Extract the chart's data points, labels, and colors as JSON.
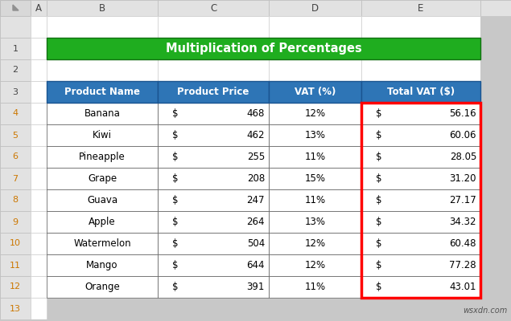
{
  "title": "Multiplication of Percentages",
  "title_bg": "#1FAD1F",
  "title_color": "#FFFFFF",
  "header_bg": "#2E75B6",
  "header_color": "#FFFFFF",
  "headers": [
    "Product Name",
    "Product Price",
    "VAT (%)",
    "Total VAT ($)"
  ],
  "rows": [
    [
      "Banana",
      "$",
      "468",
      "12%",
      "$",
      "56.16"
    ],
    [
      "Kiwi",
      "$",
      "462",
      "13%",
      "$",
      "60.06"
    ],
    [
      "Pineapple",
      "$",
      "255",
      "11%",
      "$",
      "28.05"
    ],
    [
      "Grape",
      "$",
      "208",
      "15%",
      "$",
      "31.20"
    ],
    [
      "Guava",
      "$",
      "247",
      "11%",
      "$",
      "27.17"
    ],
    [
      "Apple",
      "$",
      "264",
      "13%",
      "$",
      "34.32"
    ],
    [
      "Watermelon",
      "$",
      "504",
      "12%",
      "$",
      "60.48"
    ],
    [
      "Mango",
      "$",
      "644",
      "12%",
      "$",
      "77.28"
    ],
    [
      "Orange",
      "$",
      "391",
      "11%",
      "$",
      "43.01"
    ]
  ],
  "col_letters": [
    "A",
    "B",
    "C",
    "D",
    "E"
  ],
  "highlight_border": "#FF0000",
  "watermark": "wsxdn.com",
  "bg_color": "#C8C8C8",
  "excel_header_bg": "#E2E2E2",
  "excel_header_border": "#BEBEBE",
  "cell_bg": "#FFFFFF",
  "cell_border": "#D0D0D0",
  "table_border": "#5A5A5A",
  "corner_bg": "#D8D8D8",
  "row_num_selected_bg": "#BDBDBD",
  "row_num_selected_text": "#CC7700"
}
